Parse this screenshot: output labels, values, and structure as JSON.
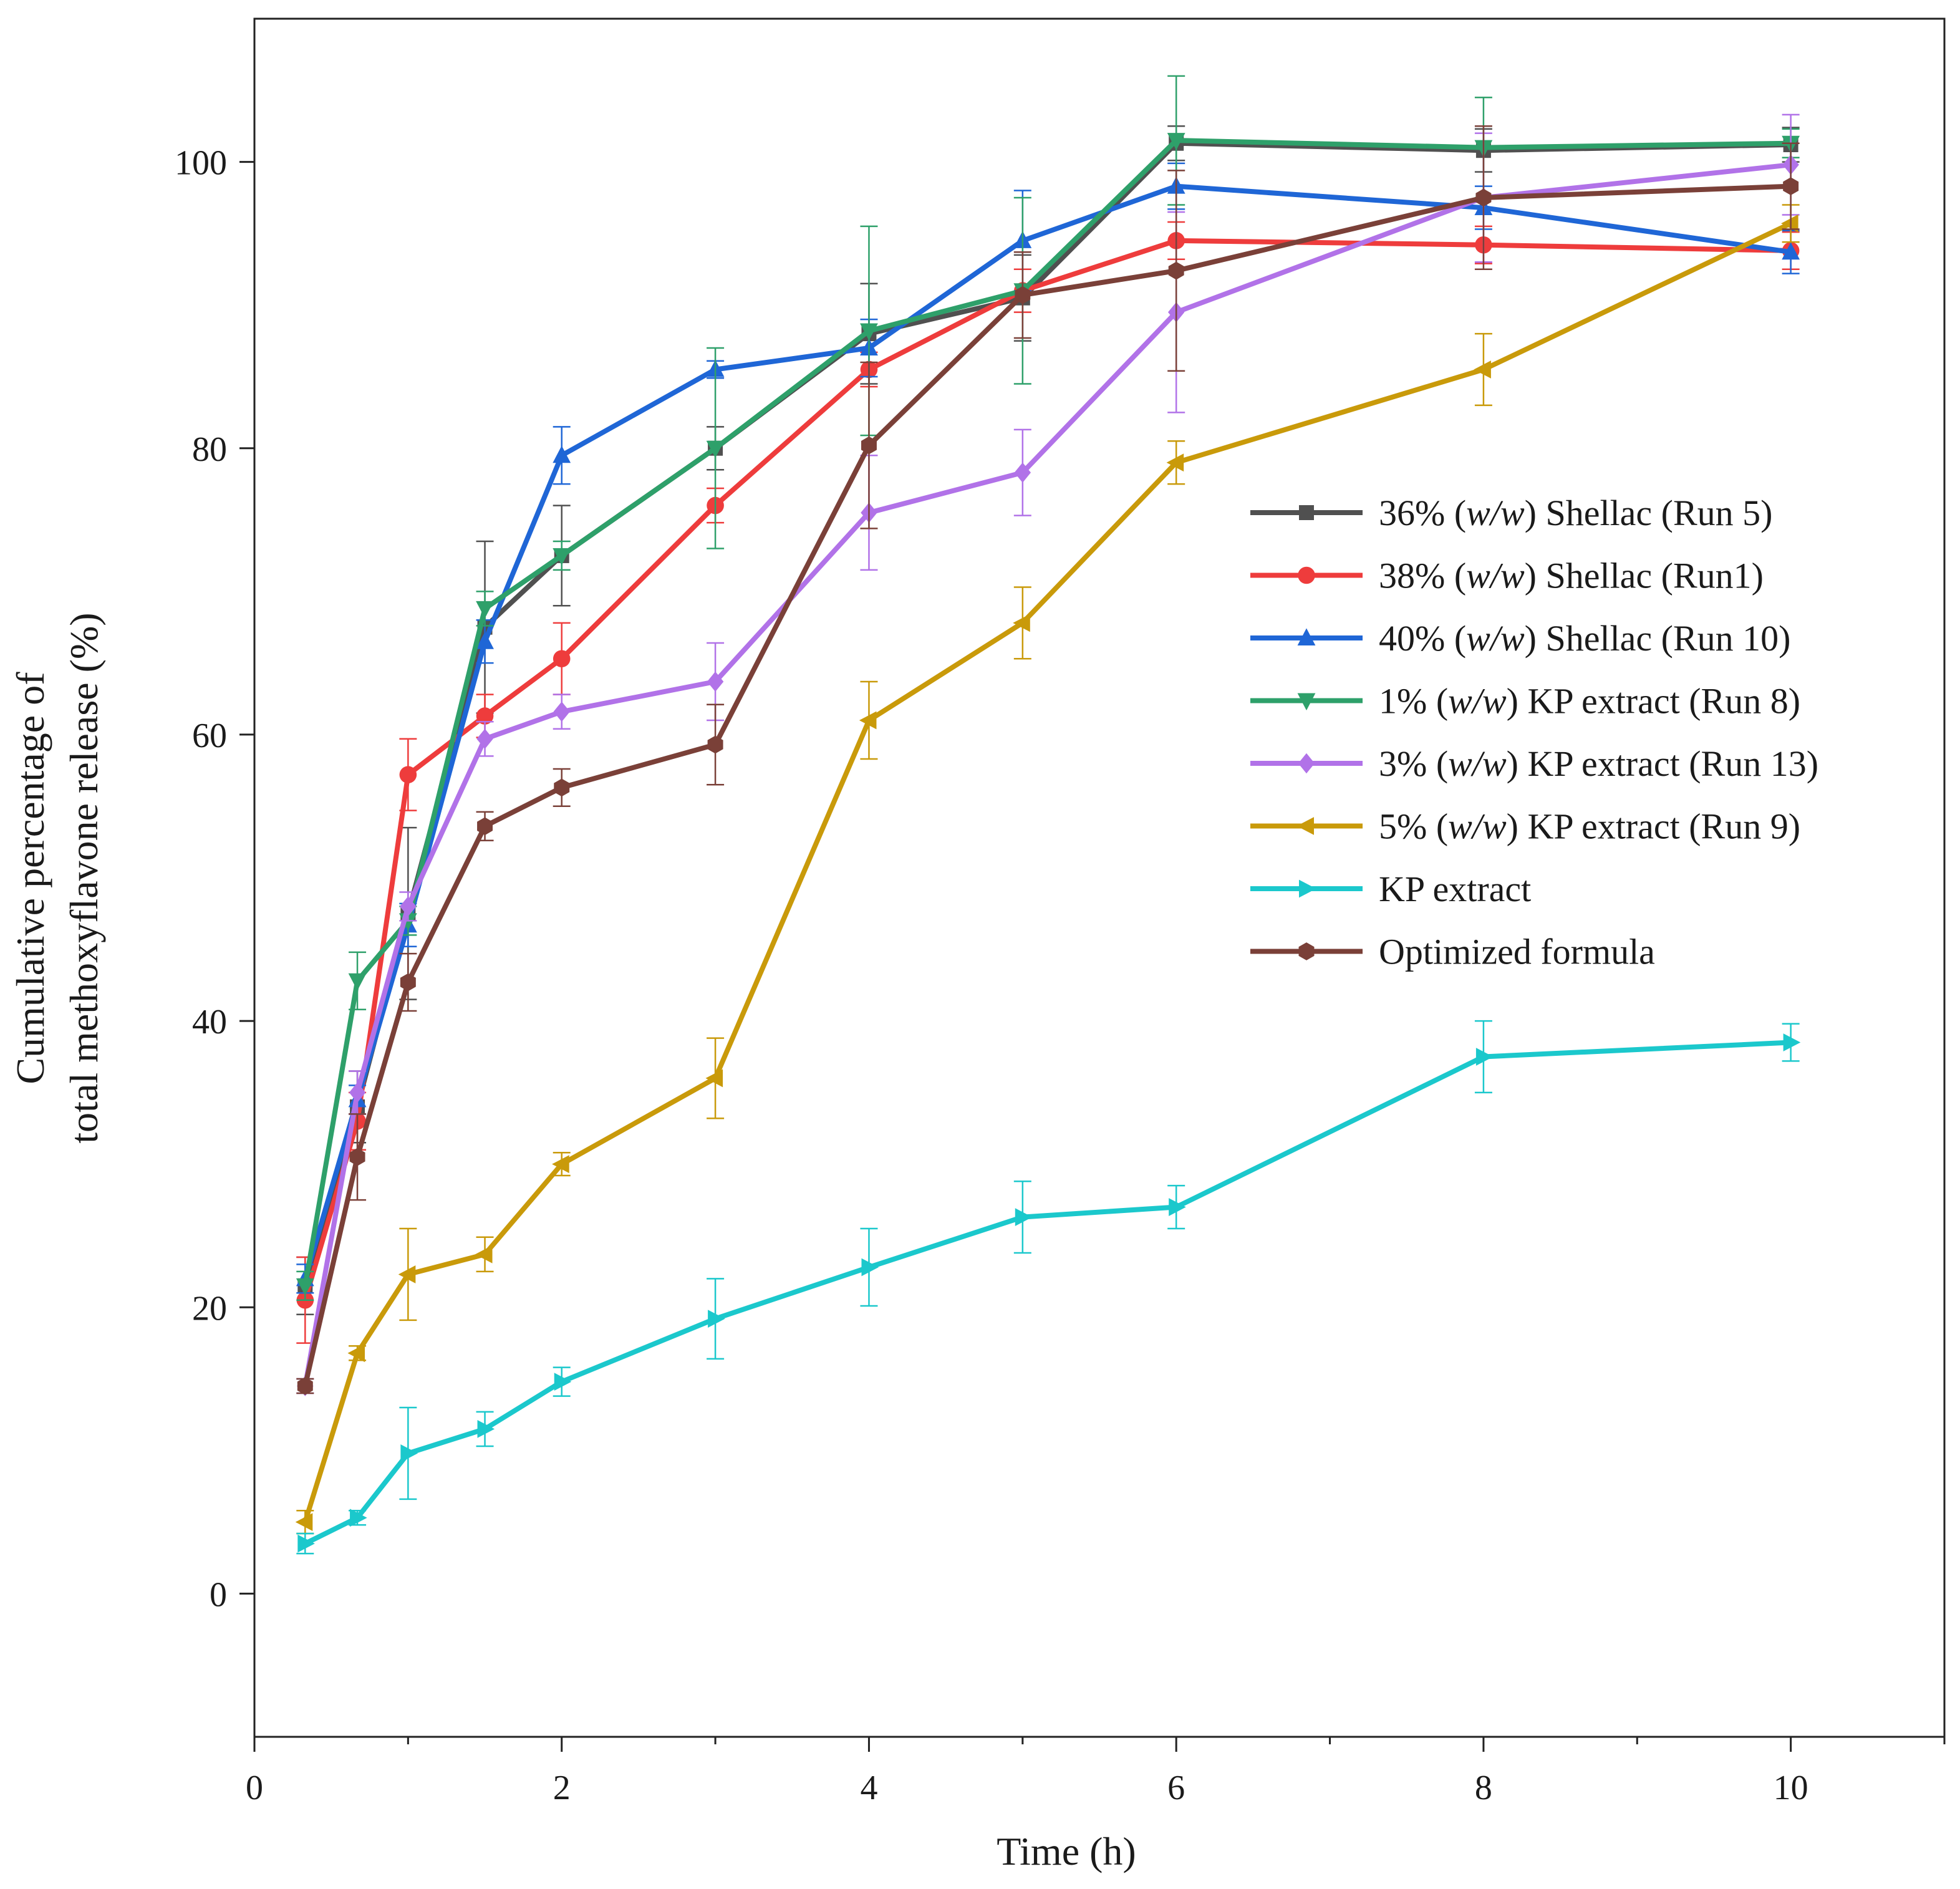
{
  "chart_data": {
    "type": "line",
    "title": "",
    "xlabel": "Time (h)",
    "ylabel_lines": [
      "Cumulative percentage of",
      "total methoxyflavone release (%)"
    ],
    "xlim": [
      0,
      11
    ],
    "ylim": [
      -10,
      110
    ],
    "xticks": [
      "0",
      "2",
      "4",
      "6",
      "8",
      "10"
    ],
    "yticks": [
      "0",
      "20",
      "40",
      "60",
      "80",
      "100"
    ],
    "xtick_values": [
      0,
      2,
      4,
      6,
      8,
      10
    ],
    "ytick_values": [
      0,
      20,
      40,
      60,
      80,
      100
    ],
    "legend_position": "center-right",
    "series": [
      {
        "name": "36% (w/w) Shellac (Run 5)",
        "legend_parts": [
          "36% (",
          "w/w",
          ") Shellac (Run 5)"
        ],
        "color": "#505050",
        "marker": "square",
        "x": [
          0.33,
          0.67,
          1,
          1.5,
          2,
          3,
          4,
          5,
          6,
          8,
          10
        ],
        "y": [
          21.5,
          34,
          47.5,
          67.5,
          72.5,
          80,
          88,
          90.5,
          101.3,
          100.8,
          101.2
        ],
        "err": [
          2,
          2.5,
          6,
          6,
          3.5,
          1.5,
          3.5,
          3,
          1.2,
          1.5,
          1.2
        ]
      },
      {
        "name": "38% (w/w) Shellac (Run1)",
        "legend_parts": [
          "38% (",
          "w/w",
          ") Shellac (Run1)"
        ],
        "color": "#ee3c3c",
        "marker": "circle",
        "x": [
          0.33,
          0.67,
          1,
          1.5,
          2,
          3,
          4,
          5,
          6,
          8,
          10
        ],
        "y": [
          20.5,
          33,
          57.2,
          61.3,
          65.3,
          76,
          85.5,
          91,
          94.5,
          94.2,
          93.8
        ],
        "err": [
          3,
          2,
          2.5,
          1.5,
          2.5,
          1.2,
          1.2,
          1.5,
          1.3,
          1.3,
          1.3
        ]
      },
      {
        "name": "40% (w/w)  Shellac (Run 10)",
        "legend_parts": [
          "40% (",
          "w/w",
          ")  Shellac (Run 10)"
        ],
        "color": "#1f66d6",
        "marker": "triangle-up",
        "x": [
          0.33,
          0.67,
          1,
          1.5,
          2,
          3,
          4,
          5,
          6,
          8,
          10
        ],
        "y": [
          22,
          34.5,
          46.7,
          66.5,
          79.5,
          85.5,
          87,
          94.5,
          98.3,
          96.8,
          93.7
        ],
        "err": [
          1,
          1,
          1.5,
          1.5,
          2,
          0.6,
          2,
          3.5,
          1.6,
          1.5,
          1.5
        ]
      },
      {
        "name": "1% (w/w)  KP extract (Run 8)",
        "legend_parts": [
          "1% (",
          "w/w",
          ")  KP extract (Run 8)"
        ],
        "color": "#2ea06a",
        "marker": "triangle-down",
        "x": [
          0.33,
          0.67,
          1,
          1.5,
          2,
          3,
          4,
          5,
          6,
          8,
          10
        ],
        "y": [
          21.5,
          42.8,
          47,
          68.8,
          72.5,
          80,
          88.2,
          91,
          101.5,
          101,
          101.3
        ],
        "err": [
          1,
          2,
          1,
          1.2,
          1,
          7,
          7.3,
          6.5,
          4.5,
          3.5,
          1
        ]
      },
      {
        "name": "3% (w/w)  KP extract (Run 13)",
        "legend_parts": [
          "3% (",
          "w/w",
          ")  KP extract (Run 13)"
        ],
        "color": "#b172e8",
        "marker": "diamond",
        "x": [
          0.33,
          0.67,
          1,
          1.5,
          2,
          3,
          4,
          5,
          6,
          8,
          10
        ],
        "y": [
          14.5,
          35,
          48,
          59.7,
          61.6,
          63.7,
          75.5,
          78.3,
          89.5,
          97.5,
          99.8
        ],
        "err": [
          0.5,
          1.5,
          1,
          1.2,
          1.2,
          2.7,
          4,
          3,
          7,
          4.5,
          3.5
        ]
      },
      {
        "name": "5% (w/w)  KP extract (Run 9)",
        "legend_parts": [
          "5% (",
          "w/w",
          ")  KP extract (Run 9)"
        ],
        "color": "#c99a0a",
        "marker": "triangle-left",
        "x": [
          0.33,
          0.67,
          1,
          1.5,
          2,
          3,
          4,
          5,
          6,
          8,
          10
        ],
        "y": [
          5,
          16.8,
          22.3,
          23.7,
          30,
          36,
          61,
          67.8,
          79,
          85.5,
          95.7
        ],
        "err": [
          0.8,
          0.5,
          3.2,
          1.2,
          0.8,
          2.8,
          2.7,
          2.5,
          1.5,
          2.5,
          1.3
        ]
      },
      {
        "name": "KP extract",
        "legend_parts": [
          "KP extract",
          "",
          ""
        ],
        "color": "#1bc8cc",
        "marker": "triangle-right",
        "x": [
          0.33,
          0.67,
          1,
          1.5,
          2,
          3,
          4,
          5,
          6,
          8,
          10
        ],
        "y": [
          3.5,
          5.3,
          9.8,
          11.5,
          14.8,
          19.2,
          22.8,
          26.3,
          27,
          37.5,
          38.5
        ],
        "err": [
          0.7,
          0.5,
          3.2,
          1.2,
          1,
          2.8,
          2.7,
          2.5,
          1.5,
          2.5,
          1.3
        ]
      },
      {
        "name": "Optimized formula",
        "legend_parts": [
          "Optimized formula",
          "",
          ""
        ],
        "color": "#7a4038",
        "marker": "hexagon",
        "x": [
          0.33,
          0.67,
          1,
          1.5,
          2,
          3,
          4,
          5,
          6,
          8,
          10
        ],
        "y": [
          14.5,
          30.5,
          42.7,
          53.6,
          56.3,
          59.3,
          80.2,
          90.7,
          92.4,
          97.5,
          98.3
        ],
        "err": [
          0.5,
          3,
          2,
          1,
          1.3,
          2.8,
          5.8,
          3,
          7,
          5,
          3
        ]
      }
    ]
  }
}
